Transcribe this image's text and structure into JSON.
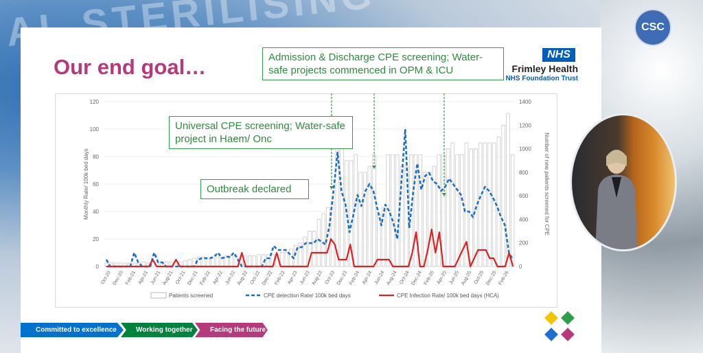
{
  "background_text": "AL STERILISING",
  "slide": {
    "title": "Our end goal…",
    "org": {
      "logo": "NHS",
      "name": "Frimley Health",
      "sub": "NHS Foundation Trust"
    },
    "callouts": [
      "Admission & Discharge CPE screening; Water-safe projects commenced in OPM & ICU",
      "Universal CPE screening; Water-safe project in Haem/ Onc",
      "Outbreak declared"
    ],
    "footer": [
      "Committed to excellence",
      "Working together",
      "Facing the future"
    ],
    "footer_colors": [
      "#0072ce",
      "#00843d",
      "#b5397b"
    ],
    "tile_colors": [
      "#f2c500",
      "#2e9e4a",
      "#1d6fd1",
      "#b5397b"
    ]
  },
  "badge": {
    "label": "CSC"
  },
  "chart_data": {
    "type": "bar+line",
    "ylabel": "Monthly Rate/ 100k bed days",
    "y2label": "Number of new patients screened for CPE",
    "ylim": [
      0,
      120
    ],
    "y2lim": [
      0,
      1400
    ],
    "yticks": [
      "120",
      "100",
      "80",
      "60",
      "40",
      "20",
      "0"
    ],
    "y2ticks": [
      "1400",
      "1200",
      "1000",
      "800",
      "600",
      "400",
      "200",
      "0"
    ],
    "xticks": [
      "Oct-20",
      "Dec-20",
      "Feb-21",
      "Apr-21",
      "Jun-21",
      "Aug-21",
      "Oct-21",
      "Dec-21",
      "Feb-22",
      "Apr-22",
      "Jun-22",
      "Aug-22",
      "Oct-22",
      "Dec-22",
      "Feb-23",
      "Apr-23",
      "Jun-23",
      "Aug-23",
      "Oct-23",
      "Dec-23",
      "Feb-24",
      "Apr-24",
      "Jun-24",
      "Aug-24",
      "Oct-24",
      "Dec-24",
      "Feb-25",
      "Apr-25",
      "Jun-25",
      "Aug-25",
      "Oct-25",
      "Dec-25",
      "Feb-26"
    ],
    "legend": [
      "Patients screened",
      "CPE detection Rate/ 100k bed days",
      "CPE Infection Rate/ 100k bed days (HCA)"
    ],
    "series": [
      {
        "name": "Patients screened",
        "kind": "bar",
        "axis": "right",
        "values": [
          30,
          30,
          30,
          30,
          30,
          30,
          30,
          30,
          40,
          30,
          40,
          40,
          40,
          40,
          40,
          40,
          40,
          50,
          60,
          70,
          80,
          80,
          60,
          70,
          80,
          80,
          90,
          90,
          90,
          80,
          90,
          90,
          90,
          100,
          100,
          100,
          100,
          100,
          120,
          120,
          150,
          180,
          200,
          250,
          300,
          300,
          400,
          450,
          500,
          550,
          1050,
          1050,
          900,
          900,
          950,
          800,
          800,
          850,
          950,
          450,
          500,
          950,
          950,
          950,
          850,
          850,
          950,
          950,
          950,
          800,
          800,
          850,
          950,
          950,
          1000,
          1050,
          950,
          950,
          1050,
          1000,
          1000,
          1050,
          1050,
          1050,
          1050,
          1100,
          1200,
          1300,
          950
        ]
      },
      {
        "name": "CPE detection Rate/ 100k bed days",
        "kind": "line",
        "axis": "left",
        "color": "#1f6fbf",
        "values": [
          5,
          0,
          0,
          0,
          0,
          0,
          0,
          10,
          3,
          0,
          0,
          0,
          10,
          3,
          3,
          0,
          0,
          0,
          0,
          0,
          0,
          0,
          0,
          5,
          6,
          6,
          6,
          7,
          10,
          6,
          7,
          7,
          10,
          5,
          0,
          0,
          0,
          0,
          0,
          0,
          6,
          6,
          15,
          12,
          12,
          12,
          9,
          6,
          14,
          14,
          17,
          17,
          17,
          20,
          18,
          16,
          30,
          55,
          83,
          55,
          45,
          25,
          38,
          52,
          44,
          55,
          60,
          55,
          42,
          30,
          45,
          40,
          32,
          20,
          60,
          100,
          28,
          55,
          75,
          56,
          66,
          68,
          62,
          60,
          55,
          58,
          64,
          60,
          56,
          52,
          40,
          40,
          36,
          45,
          52,
          58,
          55,
          50,
          44,
          36,
          30,
          10,
          5
        ]
      },
      {
        "name": "CPE Infection Rate/ 100k bed days (HCA)",
        "kind": "line",
        "axis": "left",
        "color": "#e02020",
        "values": [
          0,
          0,
          0,
          0,
          0,
          0,
          0,
          0,
          0,
          0,
          0,
          0,
          5,
          0,
          0,
          0,
          0,
          0,
          5,
          0,
          0,
          0,
          0,
          0,
          0,
          0,
          0,
          0,
          0,
          0,
          0,
          0,
          0,
          0,
          0,
          10,
          0,
          0,
          0,
          0,
          0,
          0,
          0,
          0,
          10,
          0,
          0,
          0,
          0,
          0,
          0,
          0,
          0,
          10,
          10,
          10,
          10,
          10,
          20,
          16,
          5,
          5,
          5,
          16,
          0,
          0,
          0,
          0,
          0,
          0,
          5,
          5,
          5,
          5,
          0,
          0,
          0,
          0,
          0,
          10,
          25,
          0,
          0,
          12,
          27,
          10,
          25,
          0,
          0,
          0,
          0,
          6,
          12,
          18,
          0,
          6,
          12,
          12,
          12,
          6,
          6,
          0,
          0,
          0,
          10,
          0
        ]
      }
    ]
  }
}
